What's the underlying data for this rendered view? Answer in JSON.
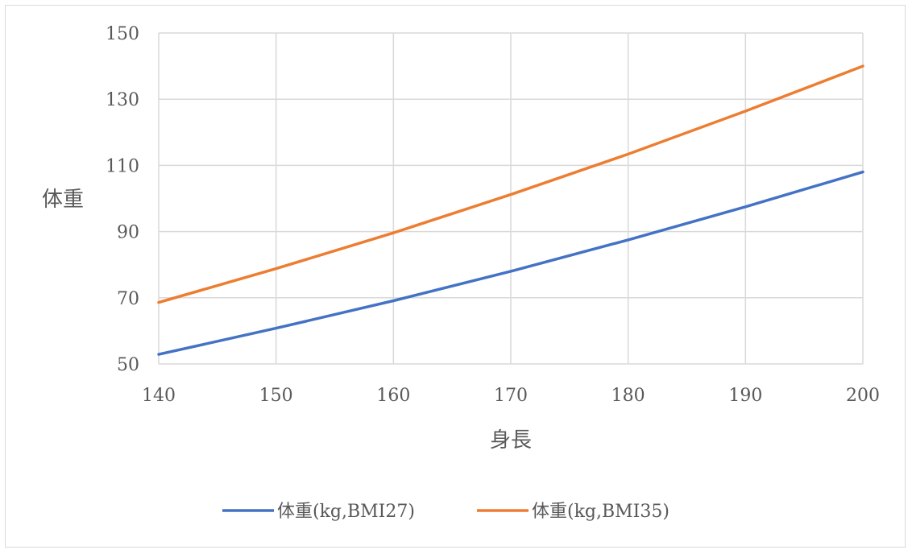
{
  "chart_data": {
    "type": "line",
    "title": "",
    "xlabel": "身長",
    "ylabel": "体重",
    "xlim": [
      140,
      200
    ],
    "ylim": [
      50,
      150
    ],
    "x_ticks": [
      140,
      150,
      160,
      170,
      180,
      190,
      200
    ],
    "y_ticks": [
      50,
      70,
      90,
      110,
      130,
      150
    ],
    "grid": true,
    "legend_position": "bottom",
    "series": [
      {
        "name": "体重(kg,BMI27)",
        "color": "#4472C4",
        "x": [
          140,
          150,
          160,
          170,
          180,
          190,
          200
        ],
        "values": [
          52.9,
          60.8,
          69.1,
          78.0,
          87.5,
          97.5,
          108.0
        ]
      },
      {
        "name": "体重(kg,BMI35)",
        "color": "#ED7D31",
        "x": [
          140,
          150,
          160,
          170,
          180,
          190,
          200
        ],
        "values": [
          68.6,
          78.8,
          89.6,
          101.2,
          113.4,
          126.4,
          140.0
        ]
      }
    ]
  }
}
